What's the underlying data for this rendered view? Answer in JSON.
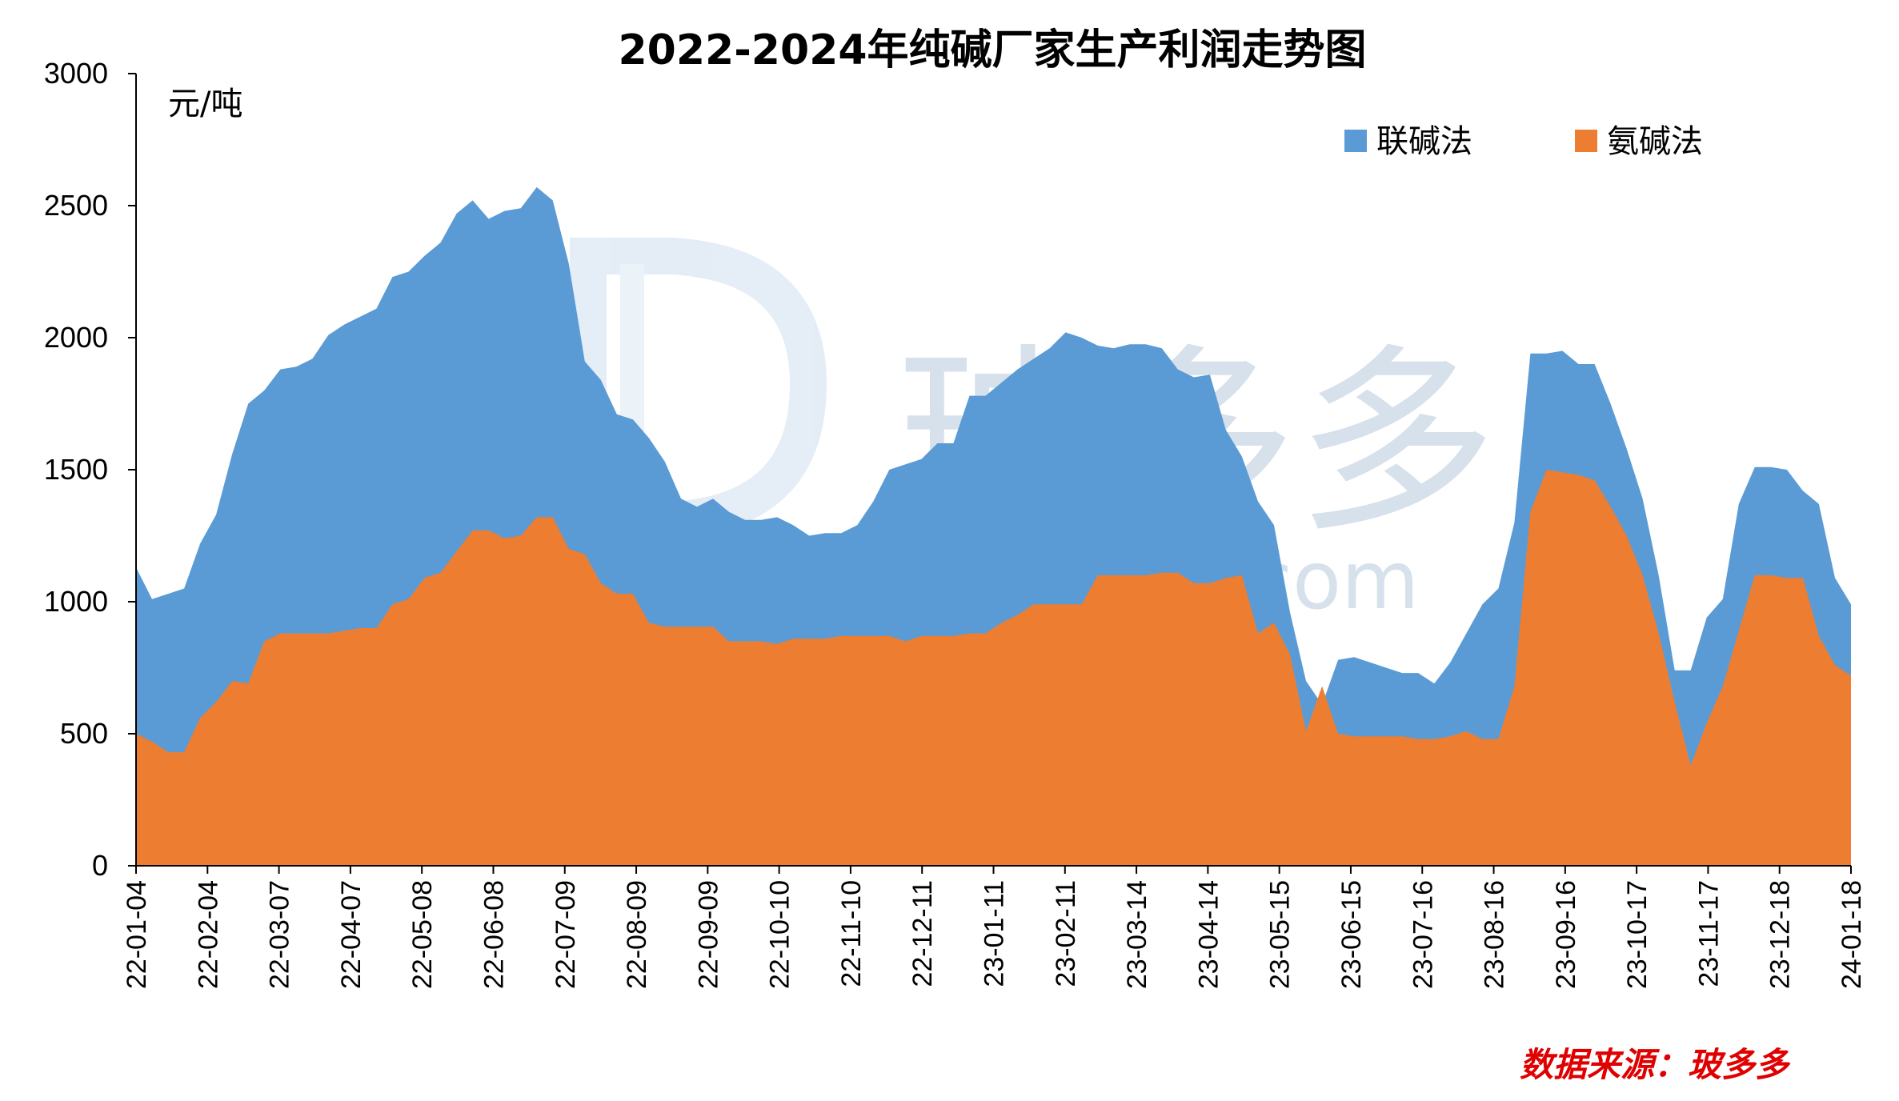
{
  "chart_data": {
    "type": "area",
    "title": "2022-2024年纯碱厂家生产利润走势图",
    "unit_label": "元/吨",
    "source_label": "数据来源：玻多多",
    "watermark": {
      "brand": "玻多多",
      "suffix": "com"
    },
    "ylim": [
      0,
      3000
    ],
    "yticks": [
      0,
      500,
      1000,
      1500,
      2000,
      2500,
      3000
    ],
    "grid": false,
    "legend_position": "top-right",
    "x_tick_labels": [
      "22-01-04",
      "22-02-04",
      "22-03-07",
      "22-04-07",
      "22-05-08",
      "22-06-08",
      "22-07-09",
      "22-08-09",
      "22-09-09",
      "22-10-10",
      "22-11-10",
      "22-12-11",
      "23-01-11",
      "23-02-11",
      "23-03-14",
      "23-04-14",
      "23-05-15",
      "23-06-15",
      "23-07-16",
      "23-08-16",
      "23-09-16",
      "23-10-17",
      "23-11-17",
      "23-12-18",
      "24-01-18"
    ],
    "series": [
      {
        "name": "联碱法",
        "color": "#5b9bd5",
        "values": [
          1130,
          1010,
          1030,
          1050,
          1220,
          1330,
          1560,
          1750,
          1800,
          1880,
          1890,
          1920,
          2010,
          2050,
          2080,
          2110,
          2230,
          2250,
          2310,
          2360,
          2470,
          2520,
          2450,
          2480,
          2490,
          2570,
          2520,
          2280,
          1910,
          1840,
          1710,
          1690,
          1620,
          1530,
          1390,
          1360,
          1390,
          1340,
          1310,
          1310,
          1320,
          1290,
          1250,
          1260,
          1260,
          1290,
          1380,
          1500,
          1520,
          1540,
          1600,
          1600,
          1780,
          1780,
          1830,
          1880,
          1920,
          1960,
          2020,
          2000,
          1970,
          1960,
          1975,
          1975,
          1960,
          1880,
          1850,
          1860,
          1650,
          1550,
          1380,
          1290,
          960,
          700,
          610,
          780,
          790,
          770,
          750,
          730,
          730,
          690,
          770,
          880,
          990,
          1050,
          1300,
          1940,
          1940,
          1950,
          1900,
          1900,
          1750,
          1580,
          1390,
          1100,
          740,
          740,
          940,
          1010,
          1370,
          1510,
          1510,
          1500,
          1420,
          1370,
          1090,
          990
        ]
      },
      {
        "name": "氨碱法",
        "color": "#ed7d31",
        "values": [
          500,
          470,
          430,
          430,
          560,
          620,
          700,
          690,
          850,
          880,
          880,
          880,
          880,
          890,
          900,
          900,
          990,
          1010,
          1090,
          1110,
          1190,
          1270,
          1270,
          1240,
          1250,
          1320,
          1320,
          1200,
          1180,
          1070,
          1030,
          1030,
          920,
          905,
          905,
          905,
          905,
          850,
          850,
          850,
          840,
          860,
          860,
          860,
          870,
          870,
          870,
          870,
          850,
          870,
          870,
          870,
          880,
          880,
          920,
          950,
          990,
          990,
          990,
          990,
          1100,
          1100,
          1100,
          1100,
          1110,
          1110,
          1070,
          1070,
          1090,
          1100,
          880,
          920,
          800,
          510,
          680,
          500,
          490,
          490,
          490,
          490,
          480,
          480,
          490,
          510,
          480,
          480,
          680,
          1340,
          1500,
          1490,
          1480,
          1460,
          1360,
          1250,
          1100,
          880,
          620,
          380,
          540,
          680,
          890,
          1100,
          1100,
          1090,
          1090,
          870,
          760,
          720
        ]
      }
    ]
  }
}
